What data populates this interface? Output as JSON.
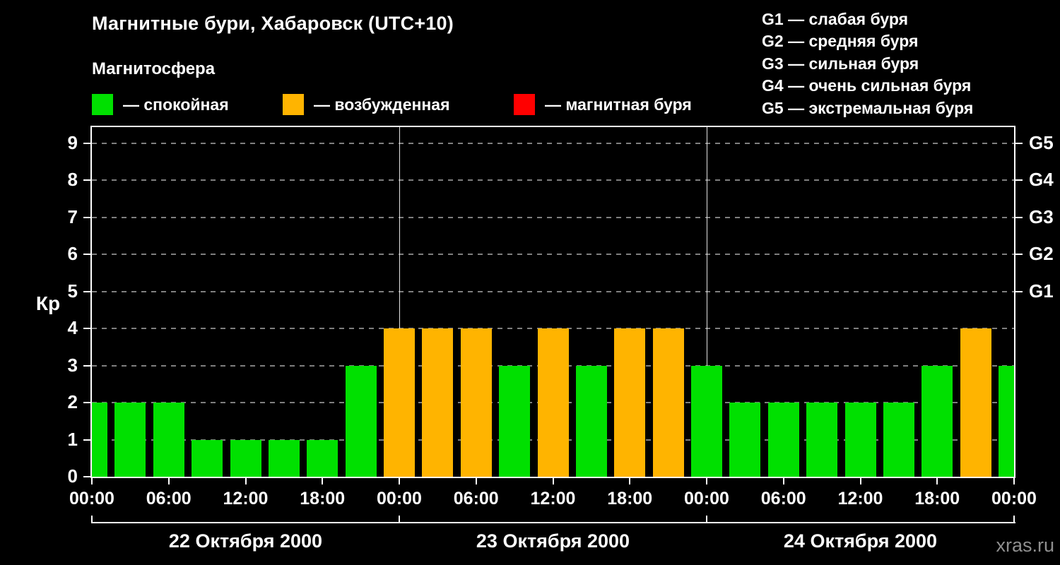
{
  "header": {
    "title": "Магнитные бури, Хабаровск (UTC+10)",
    "subtitle": "Магнитосфера"
  },
  "legend": {
    "items": [
      {
        "name": "quiet",
        "label": "— спокойная",
        "color": "#00e000"
      },
      {
        "name": "disturbed",
        "label": "— возбужденная",
        "color": "#ffb400"
      },
      {
        "name": "storm",
        "label": "— магнитная буря",
        "color": "#ff0000"
      }
    ]
  },
  "storm_scale": {
    "lines": [
      "G1 — слабая буря",
      "G2 — средняя буря",
      "G3 — сильная буря",
      "G4 — очень сильная буря",
      "G5 — экстремальная буря"
    ]
  },
  "watermark": "xras.ru",
  "chart_data": {
    "type": "bar",
    "title": "Магнитные бури, Хабаровск (UTC+10)",
    "ylabel": "Кр",
    "ylim": [
      0,
      9.4
    ],
    "y_ticks": [
      0,
      1,
      2,
      3,
      4,
      5,
      6,
      7,
      8,
      9
    ],
    "grid": "horizontal dashed gray lines at each Kp level",
    "legend_position": "top",
    "right_axis": [
      {
        "label": "G1",
        "kp": 5
      },
      {
        "label": "G2",
        "kp": 6
      },
      {
        "label": "G3",
        "kp": 7
      },
      {
        "label": "G4",
        "kp": 8
      },
      {
        "label": "G5",
        "kp": 9
      }
    ],
    "x_tick_labels": [
      "00:00",
      "06:00",
      "12:00",
      "18:00",
      "00:00",
      "06:00",
      "12:00",
      "18:00",
      "00:00",
      "06:00",
      "12:00",
      "18:00",
      "00:00"
    ],
    "bar_interval_hours": 3,
    "days": [
      {
        "date": "22 Октября 2000",
        "kp_values": [
          2,
          2,
          2,
          1,
          1,
          1,
          1,
          3
        ]
      },
      {
        "date": "23 Октября 2000",
        "kp_values": [
          4,
          4,
          4,
          3,
          4,
          3,
          4,
          4
        ]
      },
      {
        "date": "24 Октября 2000",
        "kp_values": [
          3,
          2,
          2,
          2,
          2,
          2,
          3,
          4
        ]
      }
    ],
    "next_day_first_value": 3,
    "colors": {
      "quiet": "#00e000",
      "disturbed": "#ffb400",
      "storm": "#ff0000"
    },
    "color_rule": "Kp<=3 зелёный (спокойная), Kp=4 оранжевый (возбужденная), Kp>=5 красный (магнитная буря)"
  }
}
